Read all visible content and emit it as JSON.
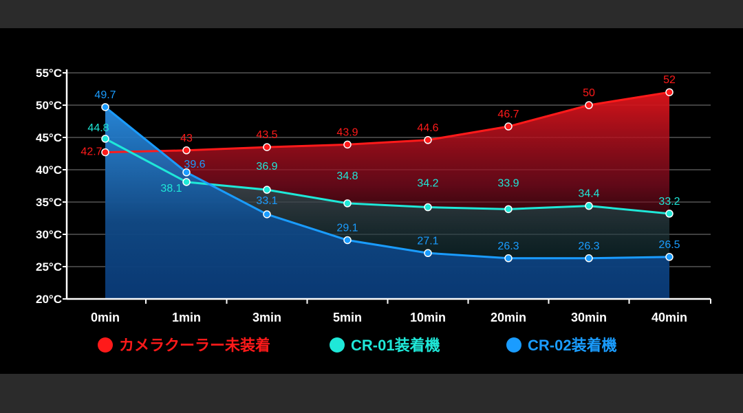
{
  "chart_data": {
    "type": "area",
    "categories": [
      "0min",
      "1min",
      "3min",
      "5min",
      "10min",
      "20min",
      "30min",
      "40min"
    ],
    "y_ticks": [
      "20°C",
      "25°C",
      "30°C",
      "35°C",
      "40°C",
      "45°C",
      "50°C",
      "55°C"
    ],
    "ylim": [
      20,
      55
    ],
    "grid": true,
    "legend_position": "bottom",
    "series": [
      {
        "name": "カメラクーラー未装着",
        "color": "#ff1a1a",
        "values": [
          42.7,
          43,
          43.5,
          43.9,
          44.6,
          46.7,
          50,
          52
        ]
      },
      {
        "name": "CR-01装着機",
        "color": "#1fe8d8",
        "values": [
          44.8,
          38.1,
          36.9,
          34.8,
          34.2,
          33.9,
          34.4,
          33.2
        ]
      },
      {
        "name": "CR-02装着機",
        "color": "#1a9cff",
        "values": [
          49.7,
          39.6,
          33.1,
          29.1,
          27.1,
          26.3,
          26.3,
          26.5
        ]
      }
    ]
  }
}
